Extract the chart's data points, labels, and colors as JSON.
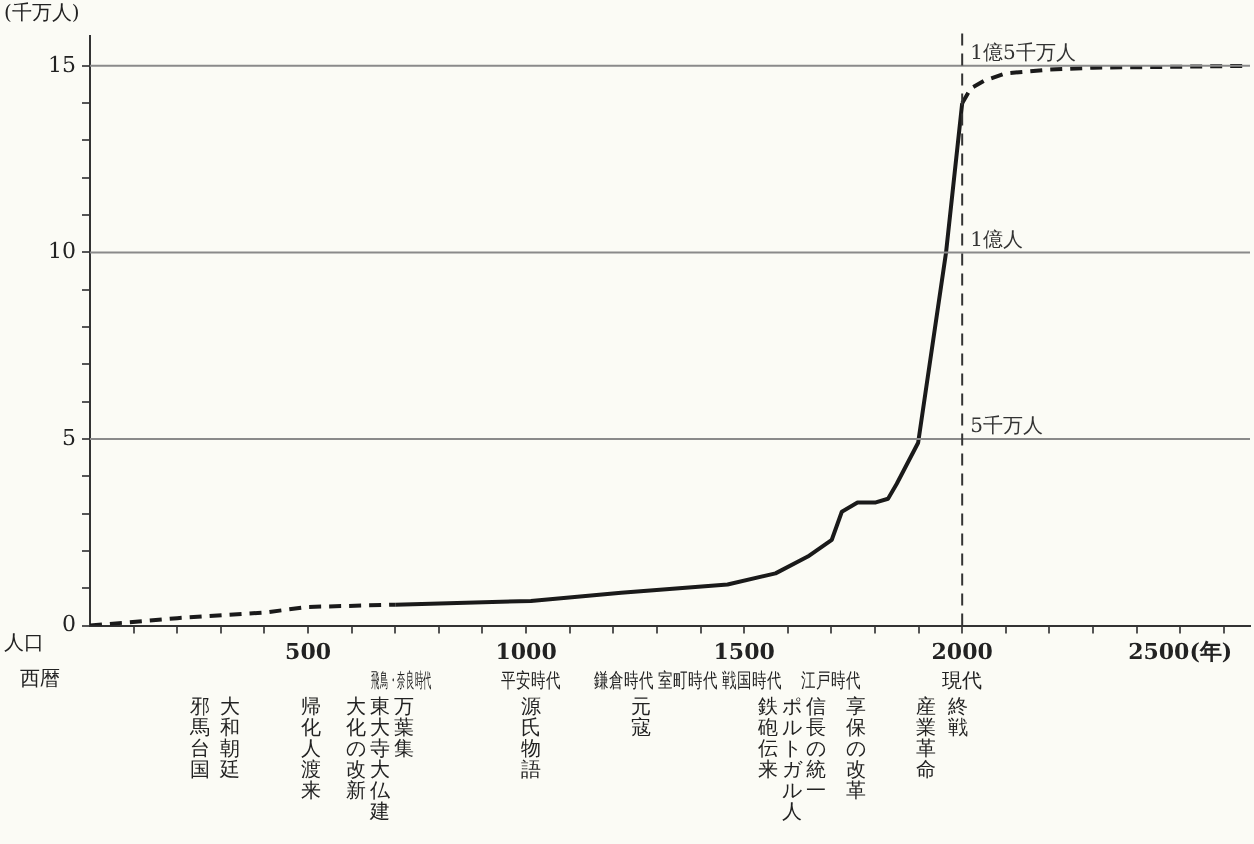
{
  "chart_data": {
    "type": "line",
    "ylabel": "(千万人)",
    "xlim": [
      0,
      2660
    ],
    "ylim": [
      0,
      15.8
    ],
    "xticks": [
      {
        "value": 100,
        "label": null
      },
      {
        "value": 200,
        "label": null
      },
      {
        "value": 300,
        "label": null
      },
      {
        "value": 400,
        "label": null
      },
      500,
      {
        "value": 600,
        "label": null
      },
      {
        "value": 700,
        "label": null
      },
      {
        "value": 800,
        "label": null
      },
      {
        "value": 900,
        "label": null
      },
      1000,
      {
        "value": 1100,
        "label": null
      },
      {
        "value": 1200,
        "label": null
      },
      {
        "value": 1300,
        "label": null
      },
      {
        "value": 1400,
        "label": null
      },
      1500,
      {
        "value": 1600,
        "label": null
      },
      {
        "value": 1700,
        "label": null
      },
      {
        "value": 1800,
        "label": null
      },
      {
        "value": 1900,
        "label": null
      },
      2000,
      {
        "value": 2100,
        "label": null
      },
      {
        "value": 2200,
        "label": null
      },
      {
        "value": 2300,
        "label": null
      },
      {
        "value": 2400,
        "label": null
      },
      {
        "value": 2500,
        "label": "2500(年)"
      },
      {
        "value": 2600,
        "label": null
      }
    ],
    "yticks": [
      0,
      {
        "value": 1,
        "label": null
      },
      {
        "value": 2,
        "label": null
      },
      {
        "value": 3,
        "label": null
      },
      {
        "value": 4,
        "label": null
      },
      5,
      {
        "value": 6,
        "label": null
      },
      {
        "value": 7,
        "label": null
      },
      {
        "value": 8,
        "label": null
      },
      {
        "value": 9,
        "label": null
      },
      10,
      {
        "value": 11,
        "label": null
      },
      {
        "value": 12,
        "label": null
      },
      {
        "value": 13,
        "label": null
      },
      {
        "value": 14,
        "label": null
      },
      15
    ],
    "grid": false,
    "legend": false,
    "marker": "none",
    "series": [
      {
        "color": "#1a1a1a",
        "line_style": "dashed",
        "x": [
          0,
          200,
          400,
          500,
          700
        ],
        "values": [
          0,
          0.2,
          0.35,
          0.5,
          0.56
        ]
      },
      {
        "color": "#1a1a1a",
        "line_style": "solid",
        "x": [
          700,
          1011,
          1218,
          1462,
          1572,
          1646,
          1701,
          1724,
          1760,
          1802,
          1830,
          1850,
          1899,
          1963,
          2000
        ],
        "values": [
          0.56,
          0.66,
          0.88,
          1.1,
          1.4,
          1.85,
          2.3,
          3.05,
          3.3,
          3.3,
          3.4,
          3.8,
          4.9,
          10,
          14
        ]
      },
      {
        "color": "#1a1a1a",
        "line_style": "dashed",
        "x": [
          2000,
          2020,
          2050,
          2100,
          2200,
          2300,
          2660
        ],
        "values": [
          14,
          14.4,
          14.6,
          14.8,
          14.9,
          14.95,
          15
        ]
      }
    ],
    "ref_lines": [
      {
        "axis": "y",
        "value": 5,
        "label": "5千万人",
        "color": "#8a8a8a"
      },
      {
        "axis": "y",
        "value": 10,
        "label": "1億人",
        "color": "#8a8a8a"
      },
      {
        "axis": "y",
        "value": 15,
        "label": "1億5千万人",
        "color": "#8a8a8a"
      },
      {
        "axis": "x",
        "value": 2000,
        "color": "#333333",
        "line_style": "dashed"
      }
    ],
    "annotations": [
      "人口",
      "西暦",
      "飛鳥・奈良時代",
      "平安時代",
      "鎌倉時代",
      "室町時代",
      "戦国時代",
      "江戸時代",
      "現代",
      "邪馬台国",
      "大和朝廷",
      "帰化人渡来",
      "大化の改新",
      "東大寺大仏建",
      "万葉集",
      "源氏物語",
      "元寇",
      "鉄砲伝来",
      "ポルトガル人",
      "信長の統一",
      "享保の改革",
      "産業革命",
      "終戦"
    ]
  }
}
